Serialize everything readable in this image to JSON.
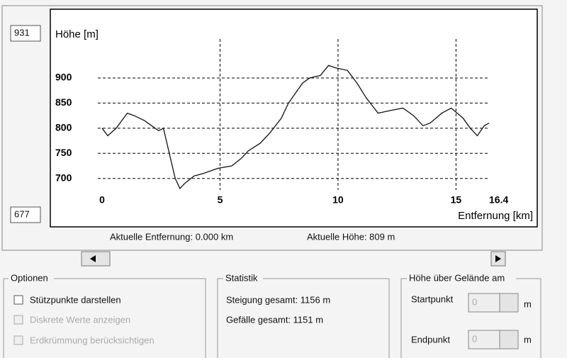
{
  "chart_data": {
    "type": "line",
    "y_label": "Höhe [m]",
    "x_label": "Entfernung [km]",
    "color": "#111111",
    "x": [
      0,
      0.24,
      0.6,
      1.07,
      1.36,
      1.8,
      2.1,
      2.4,
      2.6,
      2.85,
      3.1,
      3.3,
      3.5,
      3.9,
      4.3,
      4.9,
      5.5,
      5.9,
      6.2,
      6.7,
      7.1,
      7.6,
      7.9,
      8.2,
      8.5,
      8.8,
      9.25,
      9.6,
      9.9,
      10.4,
      10.8,
      11.2,
      11.7,
      12.2,
      12.75,
      13.2,
      13.6,
      13.9,
      14.4,
      14.8,
      15.3,
      15.6,
      15.9,
      16.2,
      16.4
    ],
    "values": [
      800,
      785,
      800,
      830,
      825,
      815,
      805,
      795,
      800,
      750,
      700,
      680,
      690,
      705,
      710,
      720,
      725,
      740,
      755,
      770,
      790,
      820,
      850,
      870,
      890,
      900,
      905,
      925,
      920,
      915,
      890,
      860,
      830,
      835,
      840,
      825,
      805,
      810,
      830,
      840,
      820,
      800,
      785,
      805,
      810
    ],
    "xlim": [
      0,
      16.4
    ],
    "xticks": [
      0,
      5,
      10,
      15,
      16.4
    ],
    "ylim": [
      677,
      931
    ],
    "yticks": [
      700,
      750,
      800,
      850,
      900
    ],
    "grid": true
  },
  "status": {
    "distance": "Aktuelle Entfernung: 0.000 km",
    "height": "Aktuelle Höhe: 809 m"
  },
  "options": {
    "title": "Optionen",
    "items": [
      "Stützpunkte darstellen",
      "Diskrete Werte anzeigen",
      "Erdkrümmung berücksichtigen"
    ]
  },
  "statistics": {
    "title": "Statistik",
    "rows": [
      "Steigung gesamt: 1156 m",
      "Gefälle gesamt: 1151 m"
    ]
  },
  "height_above": {
    "title": "Höhe über Gelände am",
    "start_label": "Startpunkt",
    "end_label": "Endpunkt",
    "start_value": "0",
    "end_value": "0",
    "unit": "m"
  }
}
